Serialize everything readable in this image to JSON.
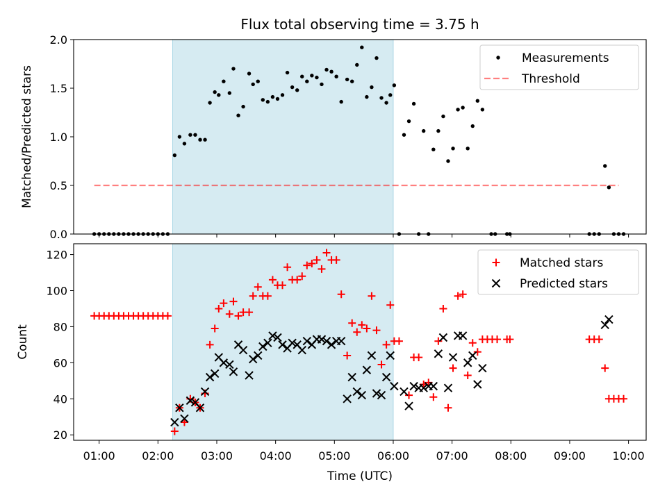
{
  "title": "Flux total observing time = 3.75 h",
  "colors": {
    "highlight": "#add8e6",
    "measurement": "#000000",
    "threshold": "#ff0000",
    "matched": "#ff0000",
    "predicted": "#000000"
  },
  "chart_data": [
    {
      "type": "scatter",
      "panel": "top",
      "ylabel": "Matched/Predicted stars",
      "xlim": [
        "00:34",
        "10:18"
      ],
      "ylim": [
        0,
        2.0
      ],
      "yticks": [
        0.0,
        0.5,
        1.0,
        1.5,
        2.0
      ],
      "ytick_labels": [
        "0.0",
        "0.5",
        "1.0",
        "1.5",
        "2.0"
      ],
      "shaded_region": [
        "02:15",
        "06:00"
      ],
      "legend": {
        "placement": "upper right",
        "entries": [
          "Measurements",
          "Threshold"
        ]
      },
      "threshold": {
        "name": "Threshold",
        "value": 0.5,
        "x_range": [
          "00:55",
          "09:50"
        ],
        "style": "dashed"
      },
      "series": [
        {
          "name": "Measurements",
          "marker": "dot",
          "points": [
            [
              "00:55",
              0
            ],
            [
              "01:00",
              0
            ],
            [
              "01:05",
              0
            ],
            [
              "01:10",
              0
            ],
            [
              "01:15",
              0
            ],
            [
              "01:20",
              0
            ],
            [
              "01:25",
              0
            ],
            [
              "01:30",
              0
            ],
            [
              "01:35",
              0
            ],
            [
              "01:40",
              0
            ],
            [
              "01:45",
              0
            ],
            [
              "01:50",
              0
            ],
            [
              "01:55",
              0
            ],
            [
              "02:00",
              0
            ],
            [
              "02:05",
              0
            ],
            [
              "02:10",
              0
            ],
            [
              "02:17",
              0.81
            ],
            [
              "02:22",
              1.0
            ],
            [
              "02:27",
              0.93
            ],
            [
              "02:33",
              1.02
            ],
            [
              "02:38",
              1.02
            ],
            [
              "02:43",
              0.97
            ],
            [
              "02:48",
              0.97
            ],
            [
              "02:53",
              1.35
            ],
            [
              "02:58",
              1.46
            ],
            [
              "03:02",
              1.43
            ],
            [
              "03:07",
              1.57
            ],
            [
              "03:13",
              1.45
            ],
            [
              "03:17",
              1.7
            ],
            [
              "03:22",
              1.22
            ],
            [
              "03:27",
              1.31
            ],
            [
              "03:33",
              1.65
            ],
            [
              "03:37",
              1.54
            ],
            [
              "03:42",
              1.57
            ],
            [
              "03:47",
              1.38
            ],
            [
              "03:52",
              1.36
            ],
            [
              "03:57",
              1.41
            ],
            [
              "04:02",
              1.39
            ],
            [
              "04:07",
              1.43
            ],
            [
              "04:12",
              1.66
            ],
            [
              "04:17",
              1.51
            ],
            [
              "04:22",
              1.48
            ],
            [
              "04:27",
              1.62
            ],
            [
              "04:32",
              1.57
            ],
            [
              "04:37",
              1.63
            ],
            [
              "04:42",
              1.61
            ],
            [
              "04:47",
              1.54
            ],
            [
              "04:52",
              1.69
            ],
            [
              "04:57",
              1.67
            ],
            [
              "05:02",
              1.62
            ],
            [
              "05:07",
              1.36
            ],
            [
              "05:13",
              1.59
            ],
            [
              "05:18",
              1.57
            ],
            [
              "05:23",
              1.74
            ],
            [
              "05:28",
              1.92
            ],
            [
              "05:33",
              1.41
            ],
            [
              "05:38",
              1.51
            ],
            [
              "05:43",
              1.81
            ],
            [
              "05:48",
              1.4
            ],
            [
              "05:53",
              1.35
            ],
            [
              "05:57",
              1.43
            ],
            [
              "06:01",
              1.53
            ],
            [
              "06:06",
              0
            ],
            [
              "06:11",
              1.02
            ],
            [
              "06:16",
              1.16
            ],
            [
              "06:21",
              1.34
            ],
            [
              "06:26",
              0
            ],
            [
              "06:31",
              1.06
            ],
            [
              "06:36",
              0
            ],
            [
              "06:41",
              0.87
            ],
            [
              "06:46",
              1.06
            ],
            [
              "06:51",
              1.21
            ],
            [
              "06:56",
              0.75
            ],
            [
              "07:01",
              0.88
            ],
            [
              "07:06",
              1.28
            ],
            [
              "07:11",
              1.3
            ],
            [
              "07:16",
              0.88
            ],
            [
              "07:21",
              1.11
            ],
            [
              "07:26",
              1.37
            ],
            [
              "07:31",
              1.28
            ],
            [
              "07:40",
              0
            ],
            [
              "07:44",
              0
            ],
            [
              "07:56",
              0
            ],
            [
              "07:59",
              0
            ],
            [
              "09:20",
              0
            ],
            [
              "09:25",
              0
            ],
            [
              "09:30",
              0
            ],
            [
              "09:36",
              0.7
            ],
            [
              "09:40",
              0.48
            ],
            [
              "09:45",
              0
            ],
            [
              "09:50",
              0
            ],
            [
              "09:55",
              0
            ]
          ]
        }
      ]
    },
    {
      "type": "scatter",
      "panel": "bottom",
      "xlabel": "Time (UTC)",
      "ylabel": "Count",
      "xlim": [
        "00:34",
        "10:18"
      ],
      "ylim": [
        17,
        126
      ],
      "xticks": [
        "01:00",
        "02:00",
        "03:00",
        "04:00",
        "05:00",
        "06:00",
        "07:00",
        "08:00",
        "09:00",
        "10:00"
      ],
      "yticks": [
        20,
        40,
        60,
        80,
        100,
        120
      ],
      "shaded_region": [
        "02:15",
        "06:00"
      ],
      "legend": {
        "placement": "upper right",
        "entries": [
          "Matched stars",
          "Predicted stars"
        ]
      },
      "series": [
        {
          "name": "Matched stars",
          "marker": "plus",
          "points": [
            [
              "00:55",
              86
            ],
            [
              "01:00",
              86
            ],
            [
              "01:05",
              86
            ],
            [
              "01:10",
              86
            ],
            [
              "01:15",
              86
            ],
            [
              "01:20",
              86
            ],
            [
              "01:25",
              86
            ],
            [
              "01:30",
              86
            ],
            [
              "01:35",
              86
            ],
            [
              "01:40",
              86
            ],
            [
              "01:45",
              86
            ],
            [
              "01:50",
              86
            ],
            [
              "01:55",
              86
            ],
            [
              "02:00",
              86
            ],
            [
              "02:05",
              86
            ],
            [
              "02:10",
              86
            ],
            [
              "02:17",
              22
            ],
            [
              "02:22",
              35
            ],
            [
              "02:27",
              27
            ],
            [
              "02:33",
              40
            ],
            [
              "02:38",
              38
            ],
            [
              "02:43",
              35
            ],
            [
              "02:48",
              43
            ],
            [
              "02:53",
              70
            ],
            [
              "02:58",
              79
            ],
            [
              "03:02",
              90
            ],
            [
              "03:07",
              93
            ],
            [
              "03:13",
              87
            ],
            [
              "03:17",
              94
            ],
            [
              "03:22",
              86
            ],
            [
              "03:27",
              88
            ],
            [
              "03:33",
              88
            ],
            [
              "03:37",
              97
            ],
            [
              "03:42",
              102
            ],
            [
              "03:47",
              97
            ],
            [
              "03:52",
              97
            ],
            [
              "03:57",
              106
            ],
            [
              "04:02",
              103
            ],
            [
              "04:07",
              103
            ],
            [
              "04:12",
              113
            ],
            [
              "04:17",
              106
            ],
            [
              "04:22",
              106
            ],
            [
              "04:27",
              108
            ],
            [
              "04:32",
              114
            ],
            [
              "04:37",
              115
            ],
            [
              "04:42",
              117
            ],
            [
              "04:47",
              112
            ],
            [
              "04:52",
              121
            ],
            [
              "04:57",
              117
            ],
            [
              "05:02",
              117
            ],
            [
              "05:07",
              98
            ],
            [
              "05:13",
              64
            ],
            [
              "05:18",
              82
            ],
            [
              "05:23",
              77
            ],
            [
              "05:28",
              81
            ],
            [
              "05:33",
              79
            ],
            [
              "05:38",
              97
            ],
            [
              "05:43",
              78
            ],
            [
              "05:48",
              59
            ],
            [
              "05:53",
              70
            ],
            [
              "05:57",
              92
            ],
            [
              "06:01",
              72
            ],
            [
              "06:06",
              72
            ],
            [
              "06:16",
              42
            ],
            [
              "06:21",
              63
            ],
            [
              "06:26",
              63
            ],
            [
              "06:31",
              48
            ],
            [
              "06:36",
              49
            ],
            [
              "06:41",
              41
            ],
            [
              "06:46",
              72
            ],
            [
              "06:51",
              90
            ],
            [
              "06:56",
              35
            ],
            [
              "07:01",
              57
            ],
            [
              "07:06",
              97
            ],
            [
              "07:11",
              98
            ],
            [
              "07:16",
              53
            ],
            [
              "07:21",
              71
            ],
            [
              "07:26",
              66
            ],
            [
              "07:31",
              73
            ],
            [
              "07:36",
              73
            ],
            [
              "07:41",
              73
            ],
            [
              "07:46",
              73
            ],
            [
              "07:56",
              73
            ],
            [
              "07:59",
              73
            ],
            [
              "09:20",
              73
            ],
            [
              "09:25",
              73
            ],
            [
              "09:30",
              73
            ],
            [
              "09:36",
              57
            ],
            [
              "09:40",
              40
            ],
            [
              "09:45",
              40
            ],
            [
              "09:50",
              40
            ],
            [
              "09:55",
              40
            ]
          ]
        },
        {
          "name": "Predicted stars",
          "marker": "x",
          "points": [
            [
              "02:17",
              27
            ],
            [
              "02:22",
              35
            ],
            [
              "02:27",
              29
            ],
            [
              "02:33",
              39
            ],
            [
              "02:38",
              38
            ],
            [
              "02:43",
              35
            ],
            [
              "02:48",
              44
            ],
            [
              "02:53",
              52
            ],
            [
              "02:58",
              54
            ],
            [
              "03:02",
              63
            ],
            [
              "03:07",
              60
            ],
            [
              "03:13",
              59
            ],
            [
              "03:17",
              55
            ],
            [
              "03:22",
              70
            ],
            [
              "03:27",
              67
            ],
            [
              "03:33",
              53
            ],
            [
              "03:37",
              62
            ],
            [
              "03:42",
              64
            ],
            [
              "03:47",
              69
            ],
            [
              "03:52",
              71
            ],
            [
              "03:57",
              75
            ],
            [
              "04:02",
              74
            ],
            [
              "04:07",
              70
            ],
            [
              "04:12",
              68
            ],
            [
              "04:17",
              71
            ],
            [
              "04:22",
              70
            ],
            [
              "04:27",
              67
            ],
            [
              "04:32",
              72
            ],
            [
              "04:37",
              70
            ],
            [
              "04:42",
              73
            ],
            [
              "04:47",
              73
            ],
            [
              "04:52",
              72
            ],
            [
              "04:57",
              70
            ],
            [
              "05:02",
              72
            ],
            [
              "05:07",
              72
            ],
            [
              "05:13",
              40
            ],
            [
              "05:18",
              52
            ],
            [
              "05:23",
              44
            ],
            [
              "05:28",
              42
            ],
            [
              "05:33",
              56
            ],
            [
              "05:38",
              64
            ],
            [
              "05:43",
              43
            ],
            [
              "05:48",
              42
            ],
            [
              "05:53",
              52
            ],
            [
              "05:57",
              64
            ],
            [
              "06:01",
              47
            ],
            [
              "06:11",
              44
            ],
            [
              "06:16",
              36
            ],
            [
              "06:21",
              47
            ],
            [
              "06:26",
              46
            ],
            [
              "06:31",
              46
            ],
            [
              "06:36",
              47
            ],
            [
              "06:41",
              47
            ],
            [
              "06:46",
              65
            ],
            [
              "06:51",
              74
            ],
            [
              "06:56",
              46
            ],
            [
              "07:01",
              63
            ],
            [
              "07:06",
              75
            ],
            [
              "07:11",
              75
            ],
            [
              "07:16",
              60
            ],
            [
              "07:21",
              64
            ],
            [
              "07:26",
              48
            ],
            [
              "07:31",
              57
            ],
            [
              "09:36",
              81
            ],
            [
              "09:40",
              84
            ]
          ]
        }
      ]
    }
  ]
}
